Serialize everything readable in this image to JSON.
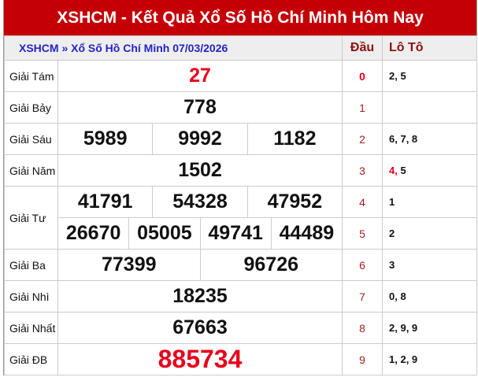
{
  "title": "XSHCM - Kết Quả Xổ Số Hồ Chí Minh Hôm Nay",
  "header": {
    "breadcrumb": "XSHCM » Xổ Số Hồ Chí Minh 07/03/2026",
    "dau": "Đầu",
    "loto": "Lô Tô"
  },
  "prizes": [
    {
      "label": "Giải Tám",
      "numbers": [
        "27"
      ]
    },
    {
      "label": "Giải Bảy",
      "numbers": [
        "778"
      ]
    },
    {
      "label": "Giải Sáu",
      "numbers": [
        "5989",
        "9992",
        "1182"
      ]
    },
    {
      "label": "Giải Năm",
      "numbers": [
        "1502"
      ]
    },
    {
      "label": "Giải Tư",
      "numbers": [
        "41791",
        "54328",
        "47952"
      ],
      "numbers2": [
        "26670",
        "05005",
        "49741",
        "44489"
      ]
    },
    {
      "label": "Giải Ba",
      "numbers": [
        "77399",
        "96726"
      ]
    },
    {
      "label": "Giải Nhì",
      "numbers": [
        "18235"
      ]
    },
    {
      "label": "Giải Nhất",
      "numbers": [
        "67663"
      ]
    },
    {
      "label": "Giải ĐB",
      "numbers": [
        "885734"
      ]
    }
  ],
  "loto": [
    {
      "dau": "0",
      "tail": "2, 5"
    },
    {
      "dau": "1",
      "tail": ""
    },
    {
      "dau": "2",
      "tail": "6, 7, 8"
    },
    {
      "dau": "3",
      "tail_highlight": "4,",
      "tail": " 5"
    },
    {
      "dau": "4",
      "tail": "1"
    },
    {
      "dau": "5",
      "tail": "2"
    },
    {
      "dau": "6",
      "tail": "3"
    },
    {
      "dau": "7",
      "tail": "0, 8"
    },
    {
      "dau": "8",
      "tail": "2, 9, 9"
    },
    {
      "dau": "9",
      "tail": "1, 2, 9"
    }
  ],
  "colors": {
    "title_bg": "#c40006",
    "highlight": "#e8001c",
    "link": "#2424c8"
  }
}
